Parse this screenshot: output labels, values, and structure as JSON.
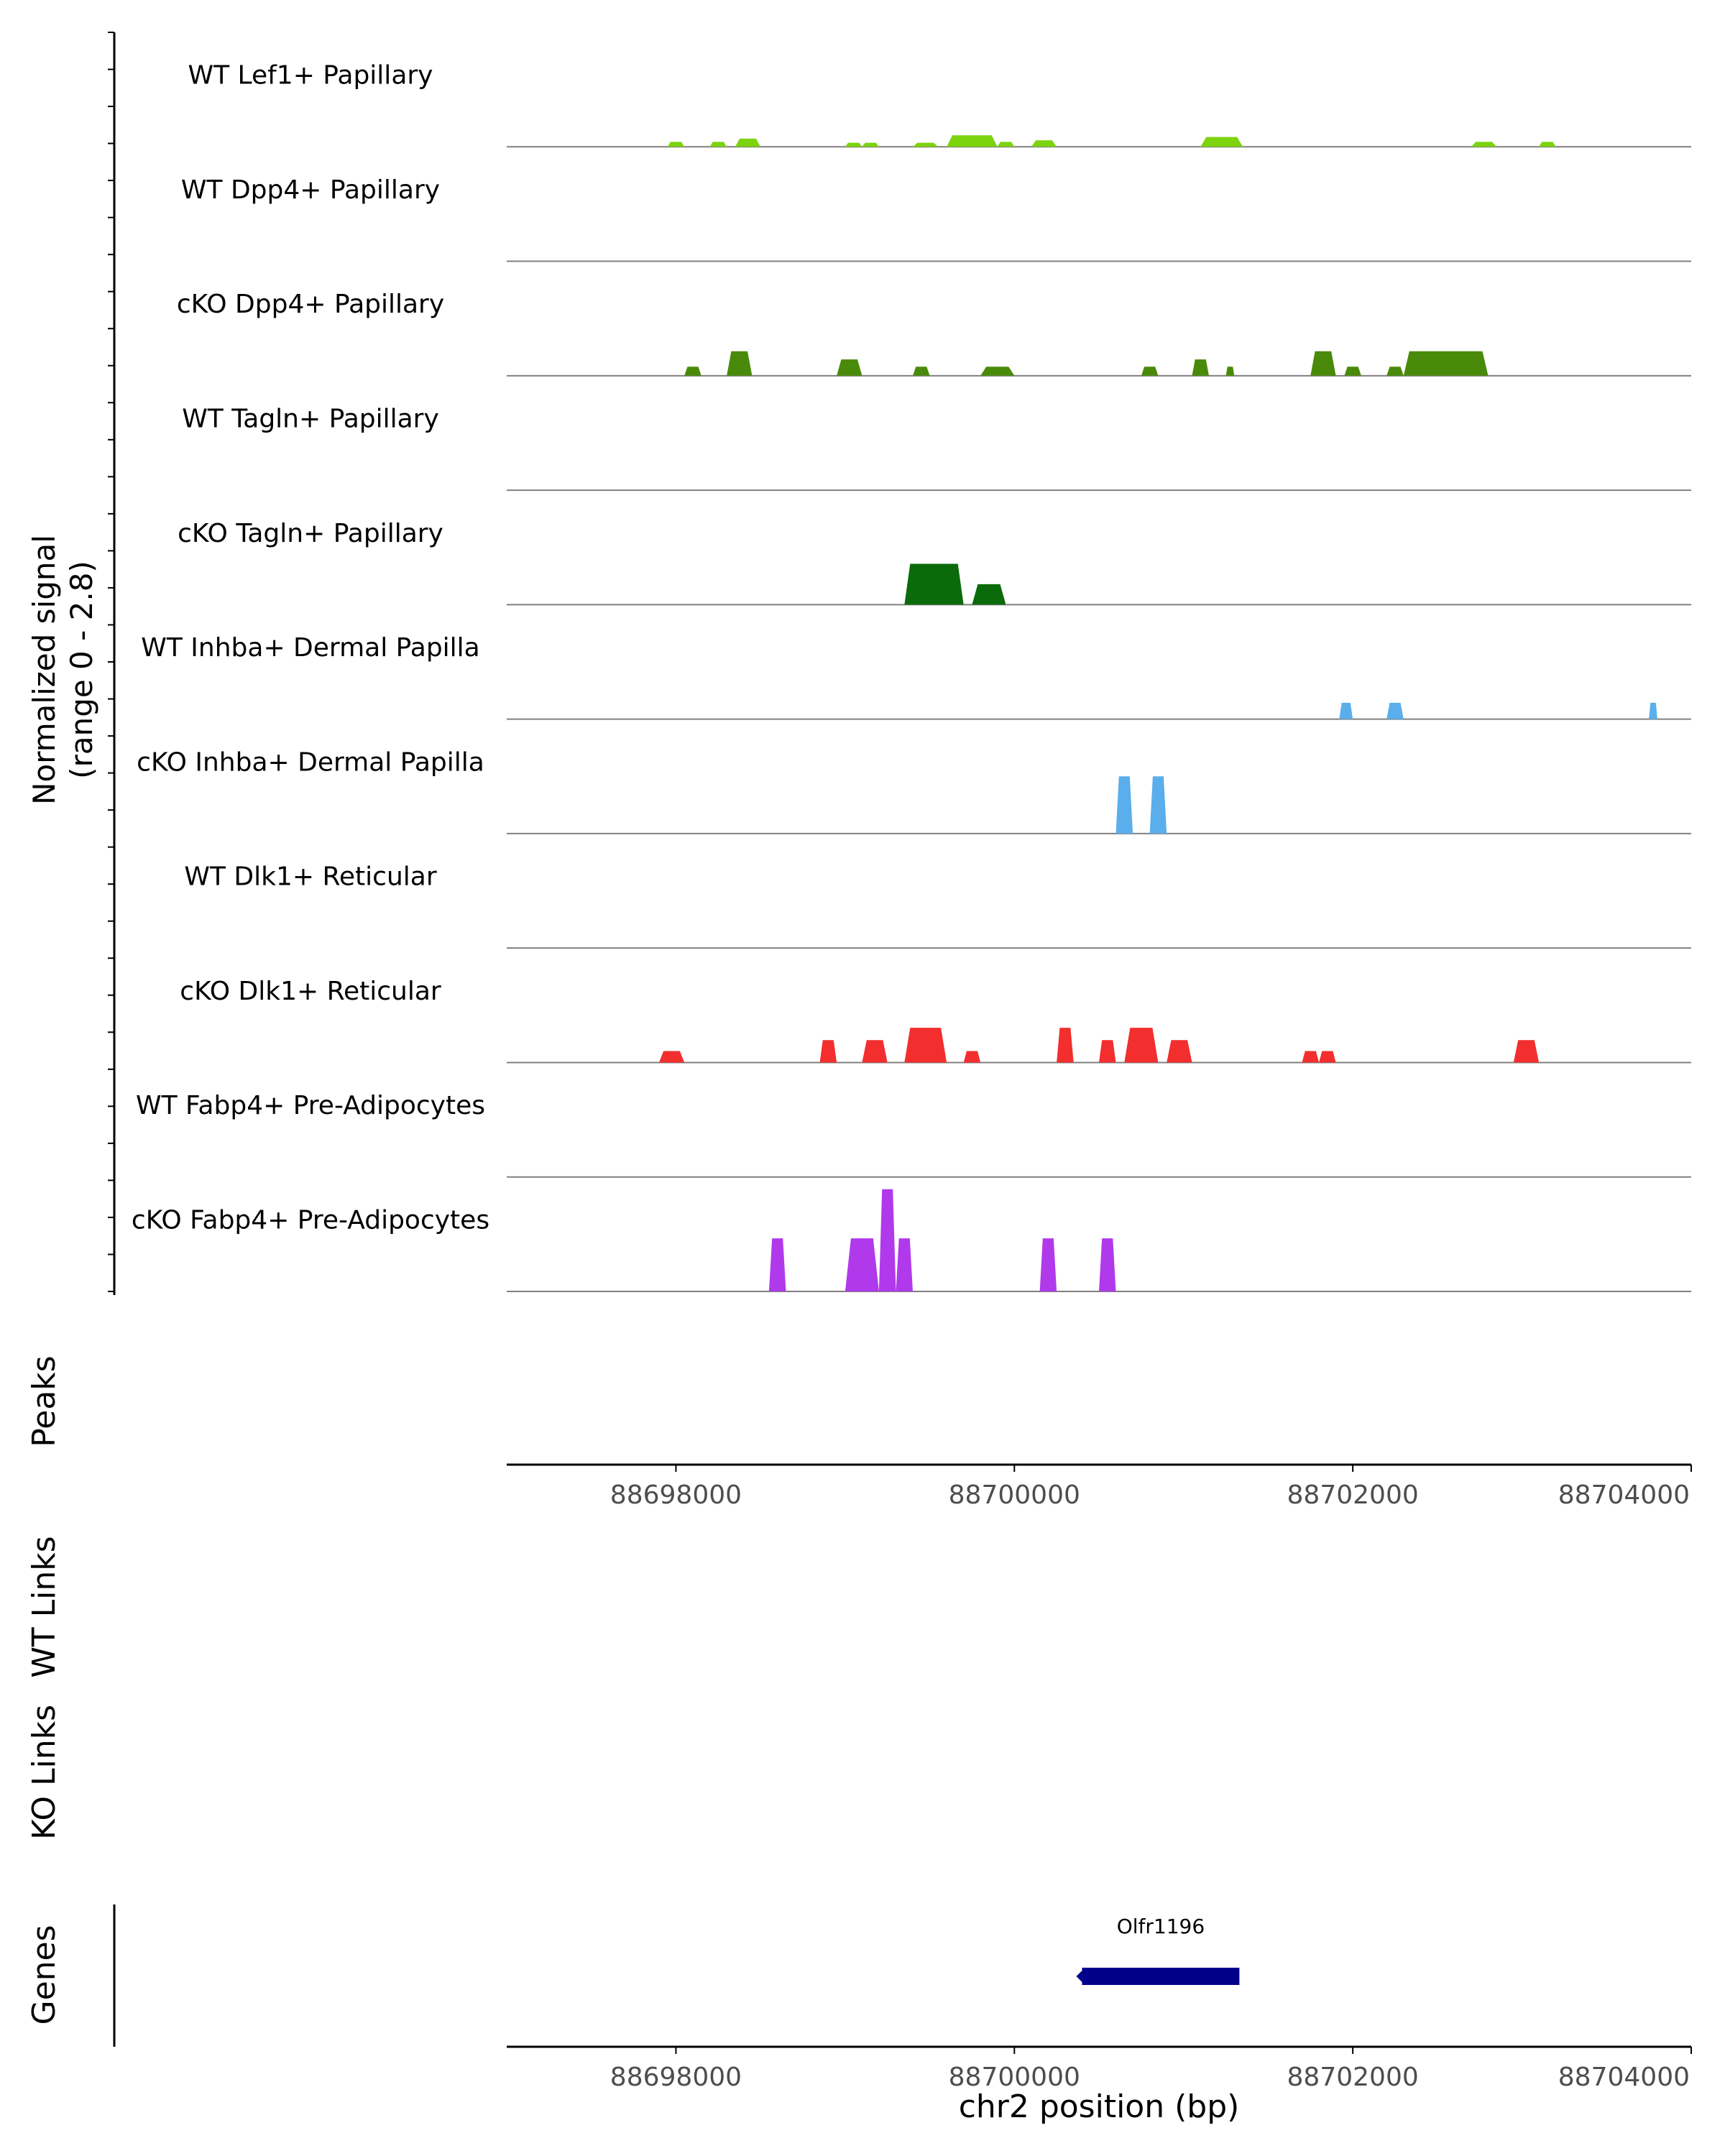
{
  "chart_data": {
    "type": "area",
    "title": "",
    "chromosome": "chr2",
    "xlabel": "chr2 position (bp)",
    "xlim": [
      88697000,
      88704000
    ],
    "xticks": [
      "88698000",
      "88700000",
      "88702000",
      "88704000"
    ],
    "xtick_values": [
      88698000,
      88700000,
      88702000,
      88704000
    ],
    "ylabel_line1": "Normalized signal",
    "ylabel_line2": "(range 0 - 2.8)",
    "ylim": [
      0,
      2.8
    ],
    "panel_labels": {
      "peaks": "Peaks",
      "wt_links": "WT Links",
      "ko_links": "KO Links",
      "genes": "Genes"
    },
    "series": [
      {
        "name": "WT Lef1+ Papillary",
        "color": "#7CD30E",
        "regions": [
          [
            88697950,
            88698050,
            0.12
          ],
          [
            88698200,
            88698300,
            0.12
          ],
          [
            88698350,
            88698500,
            0.2
          ],
          [
            88699000,
            88699100,
            0.1
          ],
          [
            88699100,
            88699200,
            0.1
          ],
          [
            88699400,
            88699550,
            0.1
          ],
          [
            88699600,
            88699900,
            0.28
          ],
          [
            88699900,
            88700000,
            0.12
          ],
          [
            88700100,
            88700250,
            0.16
          ],
          [
            88701100,
            88701350,
            0.24
          ],
          [
            88702700,
            88702850,
            0.12
          ],
          [
            88703100,
            88703200,
            0.12
          ]
        ]
      },
      {
        "name": "WT Dpp4+ Papillary",
        "color": "#4A8A0A",
        "regions": []
      },
      {
        "name": "cKO Dpp4+ Papillary",
        "color": "#4A8A0A",
        "regions": [
          [
            88698050,
            88698150,
            0.22
          ],
          [
            88698300,
            88698450,
            0.6
          ],
          [
            88698950,
            88699100,
            0.4
          ],
          [
            88699400,
            88699500,
            0.22
          ],
          [
            88699800,
            88700000,
            0.22
          ],
          [
            88700750,
            88700850,
            0.22
          ],
          [
            88701050,
            88701150,
            0.4
          ],
          [
            88701250,
            88701300,
            0.22
          ],
          [
            88701750,
            88701900,
            0.6
          ],
          [
            88701950,
            88702050,
            0.22
          ],
          [
            88702200,
            88702300,
            0.22
          ],
          [
            88702300,
            88702800,
            0.6
          ]
        ]
      },
      {
        "name": "WT Tagln+ Papillary",
        "color": "#0B6B0B",
        "regions": []
      },
      {
        "name": "cKO Tagln+ Papillary",
        "color": "#0B6B0B",
        "regions": [
          [
            88699350,
            88699700,
            1.0
          ],
          [
            88699750,
            88699950,
            0.5
          ]
        ]
      },
      {
        "name": "WT Inhba+ Dermal Papilla",
        "color": "#5AAEEB",
        "regions": [
          [
            88701920,
            88702000,
            0.4
          ],
          [
            88702200,
            88702300,
            0.4
          ],
          [
            88703750,
            88703800,
            0.4
          ]
        ]
      },
      {
        "name": "cKO Inhba+ Dermal Papilla",
        "color": "#5AAEEB",
        "regions": [
          [
            88700600,
            88700700,
            1.4
          ],
          [
            88700800,
            88700900,
            1.4
          ]
        ]
      },
      {
        "name": "WT Dlk1+ Reticular",
        "color": "#F22E2E",
        "regions": []
      },
      {
        "name": "cKO Dlk1+ Reticular",
        "color": "#F22E2E",
        "regions": [
          [
            88697900,
            88698050,
            0.28
          ],
          [
            88698850,
            88698950,
            0.55
          ],
          [
            88699100,
            88699250,
            0.55
          ],
          [
            88699350,
            88699600,
            0.85
          ],
          [
            88699700,
            88699800,
            0.28
          ],
          [
            88700250,
            88700350,
            0.85
          ],
          [
            88700500,
            88700600,
            0.55
          ],
          [
            88700650,
            88700850,
            0.85
          ],
          [
            88700900,
            88701050,
            0.55
          ],
          [
            88701700,
            88701800,
            0.28
          ],
          [
            88701800,
            88701900,
            0.28
          ],
          [
            88702950,
            88703100,
            0.55
          ]
        ]
      },
      {
        "name": "WT Fabp4+ Pre-Adipocytes",
        "color": "#B03AEB",
        "regions": []
      },
      {
        "name": "cKO Fabp4+ Pre-Adipocytes",
        "color": "#B03AEB",
        "regions": [
          [
            88698550,
            88698650,
            1.3
          ],
          [
            88699000,
            88699200,
            1.3
          ],
          [
            88699200,
            88699300,
            2.5
          ],
          [
            88699300,
            88699400,
            1.3
          ],
          [
            88700150,
            88700250,
            1.3
          ],
          [
            88700500,
            88700600,
            1.3
          ]
        ]
      }
    ],
    "genes": [
      {
        "name": "Olfr1196",
        "start": 88700400,
        "end": 88701330,
        "strand": "-",
        "color": "#00008B"
      }
    ]
  }
}
